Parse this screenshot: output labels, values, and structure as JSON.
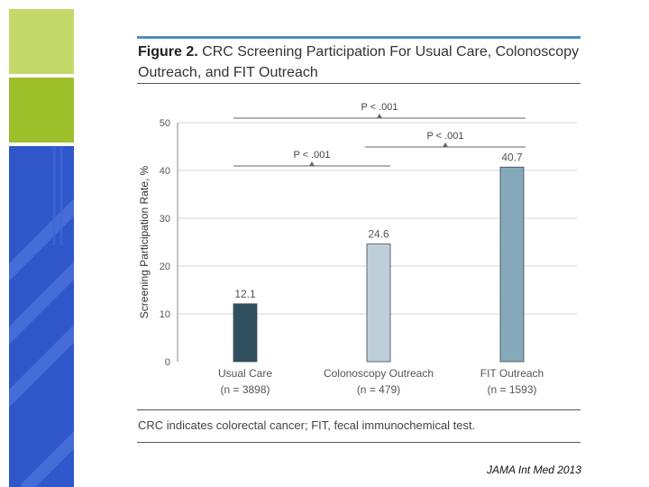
{
  "figure": {
    "title_prefix": "Figure 2.",
    "title_rest": "CRC Screening Participation For Usual Care, Colonoscopy Outreach, and FIT Outreach",
    "caption": "CRC indicates colorectal cancer; FIT, fecal immunochemical test."
  },
  "source": "JAMA Int Med 2013",
  "colors": {
    "accent_rule": "#4a90b8",
    "bar_usual_care": "#2f4f5f",
    "bar_colonoscopy": "#bfcfd9",
    "bar_fit": "#86a8bb",
    "deco_green_light": "#c5d96a",
    "deco_green_dark": "#9dbf2a",
    "deco_blue": "#2f57c9"
  },
  "chart_data": {
    "type": "bar",
    "ylabel": "Screening Participation Rate, %",
    "ylim": [
      0,
      50
    ],
    "yticks": [
      0,
      10,
      20,
      30,
      40,
      50
    ],
    "grid": true,
    "categories": [
      {
        "name": "Usual Care",
        "n": "(n = 3898)"
      },
      {
        "name": "Colonoscopy Outreach",
        "n": "(n = 479)"
      },
      {
        "name": "FIT Outreach",
        "n": "(n = 1593)"
      }
    ],
    "values": [
      12.1,
      24.6,
      40.7
    ],
    "value_labels": [
      "12.1",
      "24.6",
      "40.7"
    ],
    "comparisons": [
      {
        "from": 0,
        "to": 2,
        "label": "P < .001"
      },
      {
        "from": 1,
        "to": 2,
        "label": "P < .001"
      },
      {
        "from": 0,
        "to": 1,
        "label": "P < .001"
      }
    ]
  }
}
